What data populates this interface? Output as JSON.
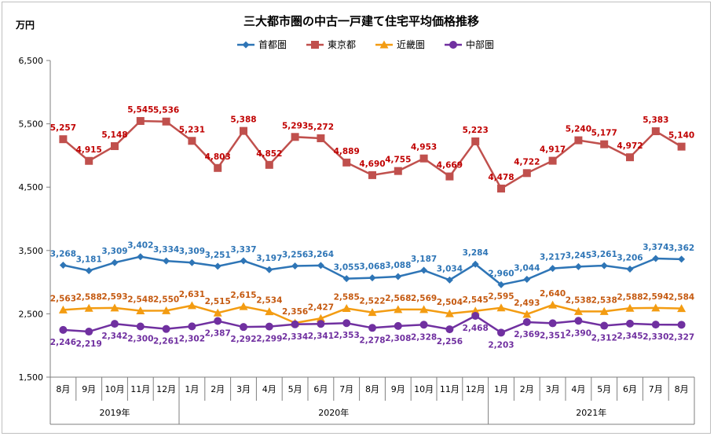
{
  "chart_data": {
    "type": "line",
    "title": "三大都市圏の中古一戸建て住宅平均価格推移",
    "ylabel": "万円",
    "ylim": [
      1500,
      6500
    ],
    "yticks": [
      1500,
      2500,
      3500,
      4500,
      5500,
      6500
    ],
    "ytick_labels": [
      "1,500",
      "2,500",
      "3,500",
      "4,500",
      "5,500",
      "6,500"
    ],
    "categories": [
      "8月",
      "9月",
      "10月",
      "11月",
      "12月",
      "1月",
      "2月",
      "3月",
      "4月",
      "5月",
      "6月",
      "7月",
      "8月",
      "9月",
      "10月",
      "11月",
      "12月",
      "1月",
      "2月",
      "3月",
      "4月",
      "5月",
      "6月",
      "7月",
      "8月"
    ],
    "year_groups": [
      {
        "label": "2019年",
        "start": 0,
        "end": 4
      },
      {
        "label": "2020年",
        "start": 5,
        "end": 16
      },
      {
        "label": "2021年",
        "start": 17,
        "end": 24
      }
    ],
    "legend_position": "top-center",
    "grid": false,
    "series": [
      {
        "name": "首都圏",
        "color": "#2e75b6",
        "label_color": "#2e75b6",
        "marker": "diamond",
        "values": [
          3268,
          3181,
          3309,
          3402,
          3334,
          3309,
          3251,
          3337,
          3197,
          3256,
          3264,
          3055,
          3068,
          3088,
          3187,
          3034,
          3284,
          2960,
          3044,
          3217,
          3245,
          3261,
          3206,
          3374,
          3362
        ],
        "labels": [
          "3,268",
          "3,181",
          "3,309",
          "3,402",
          "3,334",
          "3,309",
          "3,251",
          "3,337",
          "3,197",
          "3,256",
          "3,264",
          "3,055",
          "3,068",
          "3,088",
          "3,187",
          "3,034",
          "3,284",
          "2,960",
          "3,044",
          "3,217",
          "3,245",
          "3,261",
          "3,206",
          "3,374",
          "3,362"
        ]
      },
      {
        "name": "東京都",
        "color": "#c0504d",
        "label_color": "#c00000",
        "marker": "square",
        "values": [
          5257,
          4915,
          5148,
          5545,
          5536,
          5231,
          4803,
          5388,
          4852,
          5293,
          5272,
          4889,
          4690,
          4755,
          4953,
          4669,
          5223,
          4478,
          4722,
          4917,
          5240,
          5177,
          4972,
          5383,
          5140
        ],
        "labels": [
          "5,257",
          "4,915",
          "5,148",
          "5,545",
          "5,536",
          "5,231",
          "4,803",
          "5,388",
          "4,852",
          "5,293",
          "5,272",
          "4,889",
          "4,690",
          "4,755",
          "4,953",
          "4,669",
          "5,223",
          "4,478",
          "4,722",
          "4,917",
          "5,240",
          "5,177",
          "4,972",
          "5,383",
          "5,140"
        ]
      },
      {
        "name": "近畿圏",
        "color": "#f39c12",
        "label_color": "#c55a11",
        "marker": "triangle",
        "values": [
          2563,
          2588,
          2593,
          2548,
          2550,
          2631,
          2515,
          2615,
          2534,
          2356,
          2427,
          2585,
          2522,
          2568,
          2569,
          2504,
          2545,
          2595,
          2493,
          2640,
          2538,
          2538,
          2588,
          2594,
          2584
        ],
        "labels": [
          "2,563",
          "2,588",
          "2,593",
          "2,548",
          "2,550",
          "2,631",
          "2,515",
          "2,615",
          "2,534",
          "2,356",
          "2,427",
          "2,585",
          "2,522",
          "2,568",
          "2,569",
          "2,504",
          "2,545",
          "2,595",
          "2,493",
          "2,640",
          "2,538",
          "2,538",
          "2,588",
          "2,594",
          "2,584"
        ]
      },
      {
        "name": "中部圏",
        "color": "#7030a0",
        "label_color": "#7030a0",
        "marker": "circle",
        "values": [
          2246,
          2219,
          2342,
          2300,
          2261,
          2302,
          2387,
          2292,
          2299,
          2334,
          2341,
          2353,
          2278,
          2308,
          2328,
          2256,
          2468,
          2203,
          2369,
          2351,
          2390,
          2312,
          2345,
          2330,
          2327
        ],
        "labels": [
          "2,246",
          "2,219",
          "2,342",
          "2,300",
          "2,261",
          "2,302",
          "2,387",
          "2,292",
          "2,299",
          "2,334",
          "2,341",
          "2,353",
          "2,278",
          "2,308",
          "2,328",
          "2,256",
          "2,468",
          "2,203",
          "2,369",
          "2,351",
          "2,390",
          "2,312",
          "2,345",
          "2,330",
          "2,327"
        ]
      }
    ]
  }
}
